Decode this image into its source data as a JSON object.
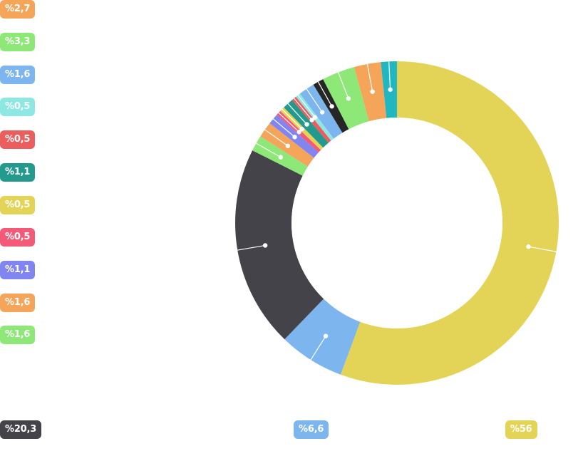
{
  "chart_data": {
    "type": "donut",
    "title": "",
    "legend": "left column and bottom row value labels",
    "slices": [
      {
        "label": "%56",
        "value": 56,
        "color": "#e3d457"
      },
      {
        "label": "%6,6",
        "value": 6.6,
        "color": "#7db5ee"
      },
      {
        "label": "%20,3",
        "value": 20.3,
        "color": "#434349"
      },
      {
        "label": "%1,6",
        "value": 1.6,
        "color": "#8ee877"
      },
      {
        "label": "%1,6",
        "value": 1.6,
        "color": "#f5a55a"
      },
      {
        "label": "%1,1",
        "value": 1.1,
        "color": "#8185ef"
      },
      {
        "label": "%0,5",
        "value": 0.5,
        "color": "#f25a77"
      },
      {
        "label": "%0,5",
        "value": 0.5,
        "color": "#e3d457"
      },
      {
        "label": "%1,1",
        "value": 1.1,
        "color": "#249a8f"
      },
      {
        "label": "%0,5",
        "value": 0.5,
        "color": "#ec5d5d"
      },
      {
        "label": "%0,5",
        "value": 0.5,
        "color": "#8de8e3"
      },
      {
        "label": "%1,6",
        "value": 1.6,
        "color": "#7db5ee"
      },
      {
        "label": "",
        "value": 1.1,
        "color": "#262626"
      },
      {
        "label": "%3,3",
        "value": 3.3,
        "color": "#8ee877"
      },
      {
        "label": "%2,7",
        "value": 2.7,
        "color": "#f5a55a"
      },
      {
        "label": "",
        "value": 1.6,
        "color": "#22b6c0"
      }
    ]
  }
}
